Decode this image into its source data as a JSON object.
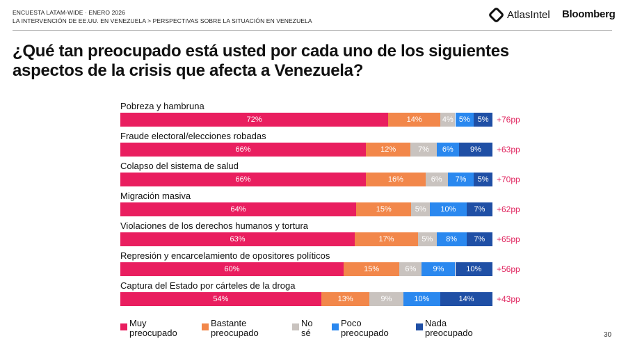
{
  "header": {
    "line1": "ENCUESTA LATAM-WIDE · ENERO 2026",
    "line2": "LA INTERVENCIÓN DE EE.UU. EN VENEZUELA > PERSPECTIVAS SOBRE LA SITUACIÓN EN VENEZUELA",
    "logo_atlas": "AtlasIntel",
    "logo_bloomberg": "Bloomberg"
  },
  "page_number": "30",
  "chart_data": {
    "type": "bar",
    "stacked": true,
    "orientation": "horizontal",
    "title": "¿Qué tan preocupado está usted por cada uno de los siguientes aspectos de la crisis que afecta a Venezuela?",
    "legend_position": "bottom",
    "categories": [
      "Pobreza y hambruna",
      "Fraude electoral/elecciones robadas",
      "Colapso del sistema de salud",
      "Migración masiva",
      "Violaciones de los derechos humanos y tortura",
      "Represión y encarcelamiento de opositores políticos",
      "Captura del Estado por cárteles de la droga"
    ],
    "series": [
      {
        "name": "Muy preocupado",
        "color": "#e91e5f",
        "values": [
          72,
          66,
          66,
          64,
          63,
          60,
          54
        ]
      },
      {
        "name": "Bastante preocupado",
        "color": "#f2874a",
        "values": [
          14,
          12,
          16,
          15,
          17,
          15,
          13
        ]
      },
      {
        "name": "No sé",
        "color": "#c9c3bf",
        "values": [
          4,
          7,
          6,
          5,
          5,
          6,
          9
        ]
      },
      {
        "name": "Poco preocupado",
        "color": "#2a88ef",
        "values": [
          5,
          6,
          7,
          10,
          8,
          9,
          10
        ]
      },
      {
        "name": "Nada preocupado",
        "color": "#1f4fa5",
        "values": [
          5,
          9,
          5,
          7,
          7,
          10,
          14
        ]
      }
    ],
    "net": [
      "+76pp",
      "+63pp",
      "+70pp",
      "+62pp",
      "+65pp",
      "+56pp",
      "+43pp"
    ],
    "net_color": "#e0245e"
  }
}
